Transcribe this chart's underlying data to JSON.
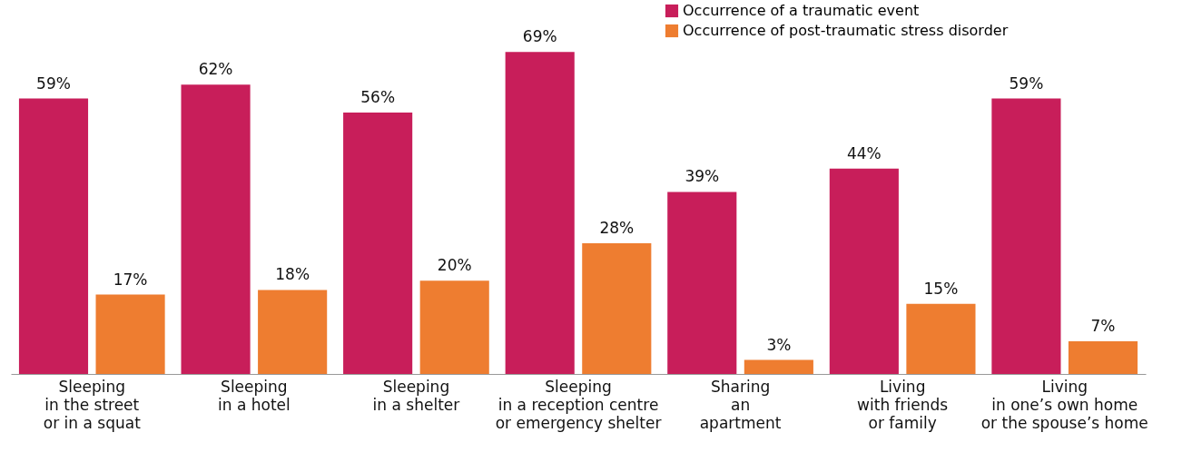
{
  "chart_data": {
    "type": "bar",
    "categories": [
      "Sleeping\nin the street\nor in a squat",
      "Sleeping\nin a hotel",
      "Sleeping\nin a shelter",
      "Sleeping\nin a reception centre\nor emergency shelter",
      "Sharing\nan\napartment",
      "Living\nwith friends\nor family",
      "Living\nin one’s own home\nor the spouse’s home"
    ],
    "series": [
      {
        "name": "Occurrence of a traumatic event",
        "color": "#c81e5a",
        "values": [
          59,
          62,
          56,
          69,
          39,
          44,
          59
        ],
        "value_labels": [
          "59%",
          "62%",
          "56%",
          "69%",
          "39%",
          "44%",
          "59%"
        ]
      },
      {
        "name": "Occurrence of post-traumatic stress disorder",
        "color": "#ee7d30",
        "values": [
          17,
          18,
          20,
          28,
          3,
          15,
          7
        ],
        "value_labels": [
          "17%",
          "18%",
          "20%",
          "28%",
          "3%",
          "15%",
          "7%"
        ]
      }
    ],
    "legend": "top right"
  }
}
